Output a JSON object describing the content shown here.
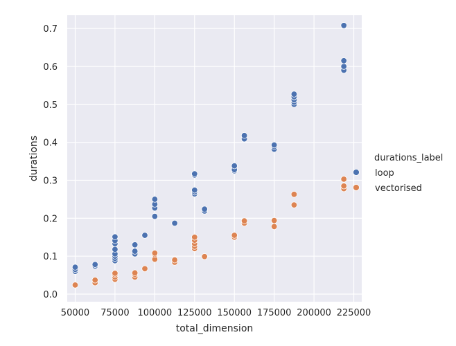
{
  "chart_data": {
    "type": "scatter",
    "title": "",
    "xlabel": "total_dimension",
    "ylabel": "durations",
    "xlim": [
      45000,
      230000
    ],
    "ylim": [
      -0.02,
      0.735
    ],
    "x_ticks": [
      50000,
      75000,
      100000,
      125000,
      150000,
      175000,
      200000,
      225000
    ],
    "y_ticks": [
      0.0,
      0.1,
      0.2,
      0.3,
      0.4,
      0.5,
      0.6,
      0.7
    ],
    "grid": true,
    "background": "#eaeaf2",
    "legend": {
      "title": "durations_label",
      "position": "right"
    },
    "series": [
      {
        "name": "loop",
        "color": "#4c72b0",
        "points": [
          [
            50000,
            0.06
          ],
          [
            50000,
            0.065
          ],
          [
            50000,
            0.071
          ],
          [
            62500,
            0.074
          ],
          [
            62500,
            0.078
          ],
          [
            75000,
            0.088
          ],
          [
            75000,
            0.094
          ],
          [
            75000,
            0.1
          ],
          [
            75000,
            0.106
          ],
          [
            75000,
            0.118
          ],
          [
            75000,
            0.133
          ],
          [
            75000,
            0.141
          ],
          [
            75000,
            0.151
          ],
          [
            87500,
            0.106
          ],
          [
            87500,
            0.113
          ],
          [
            87500,
            0.13
          ],
          [
            93750,
            0.155
          ],
          [
            100000,
            0.205
          ],
          [
            100000,
            0.227
          ],
          [
            100000,
            0.237
          ],
          [
            100000,
            0.25
          ],
          [
            112500,
            0.187
          ],
          [
            125000,
            0.264
          ],
          [
            125000,
            0.269
          ],
          [
            125000,
            0.274
          ],
          [
            125000,
            0.314
          ],
          [
            125000,
            0.317
          ],
          [
            131250,
            0.219
          ],
          [
            131250,
            0.224
          ],
          [
            150000,
            0.325
          ],
          [
            150000,
            0.328
          ],
          [
            150000,
            0.338
          ],
          [
            156250,
            0.409
          ],
          [
            156250,
            0.418
          ],
          [
            175000,
            0.382
          ],
          [
            175000,
            0.389
          ],
          [
            175000,
            0.393
          ],
          [
            187500,
            0.5
          ],
          [
            187500,
            0.506
          ],
          [
            187500,
            0.512
          ],
          [
            187500,
            0.52
          ],
          [
            187500,
            0.527
          ],
          [
            218750,
            0.59
          ],
          [
            218750,
            0.6
          ],
          [
            218750,
            0.615
          ],
          [
            218750,
            0.708
          ]
        ]
      },
      {
        "name": "vectorised",
        "color": "#dd8452",
        "points": [
          [
            50000,
            0.024
          ],
          [
            62500,
            0.03
          ],
          [
            62500,
            0.037
          ],
          [
            75000,
            0.039
          ],
          [
            75000,
            0.045
          ],
          [
            75000,
            0.051
          ],
          [
            75000,
            0.055
          ],
          [
            87500,
            0.045
          ],
          [
            87500,
            0.052
          ],
          [
            87500,
            0.056
          ],
          [
            93750,
            0.067
          ],
          [
            100000,
            0.092
          ],
          [
            100000,
            0.105
          ],
          [
            100000,
            0.108
          ],
          [
            112500,
            0.084
          ],
          [
            112500,
            0.09
          ],
          [
            125000,
            0.12
          ],
          [
            125000,
            0.126
          ],
          [
            125000,
            0.133
          ],
          [
            125000,
            0.142
          ],
          [
            125000,
            0.15
          ],
          [
            131250,
            0.099
          ],
          [
            150000,
            0.15
          ],
          [
            150000,
            0.155
          ],
          [
            156250,
            0.187
          ],
          [
            156250,
            0.193
          ],
          [
            175000,
            0.178
          ],
          [
            175000,
            0.194
          ],
          [
            187500,
            0.235
          ],
          [
            187500,
            0.263
          ],
          [
            218750,
            0.278
          ],
          [
            218750,
            0.285
          ],
          [
            218750,
            0.303
          ]
        ]
      }
    ]
  }
}
